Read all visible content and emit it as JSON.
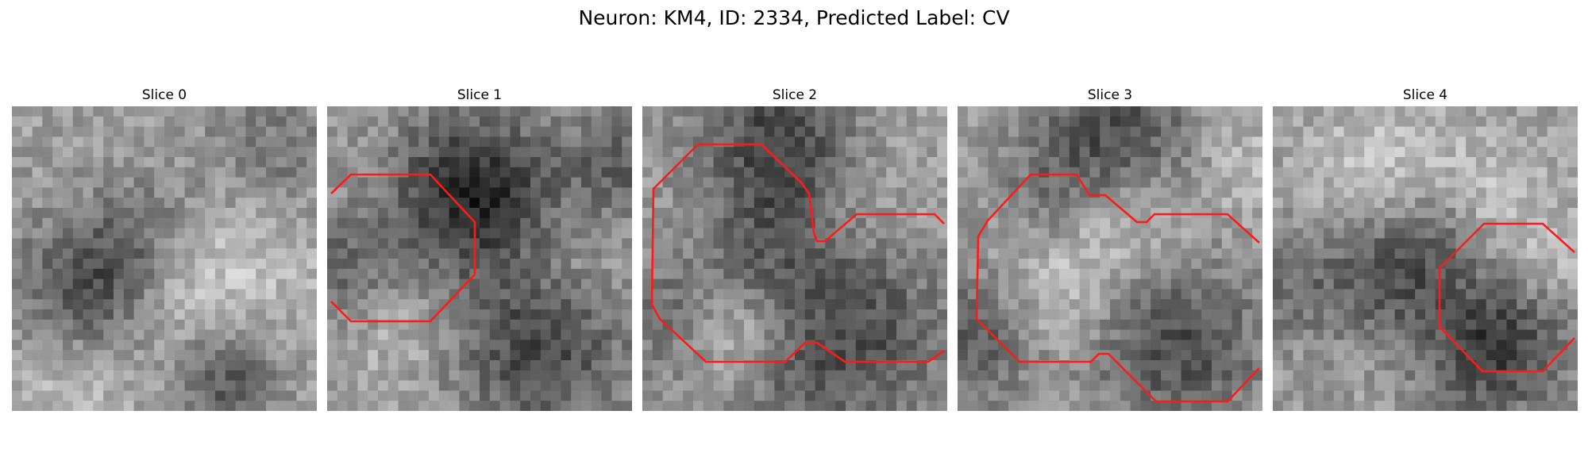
{
  "figure": {
    "suptitle": "Neuron: KM4, ID: 2334, Predicted Label: CV",
    "contour_color": "#ff1a1a"
  },
  "panels": [
    {
      "title": "Slice 0",
      "has_contour": false
    },
    {
      "title": "Slice 1",
      "has_contour": true
    },
    {
      "title": "Slice 2",
      "has_contour": true
    },
    {
      "title": "Slice 3",
      "has_contour": true
    },
    {
      "title": "Slice 4",
      "has_contour": true
    }
  ]
}
